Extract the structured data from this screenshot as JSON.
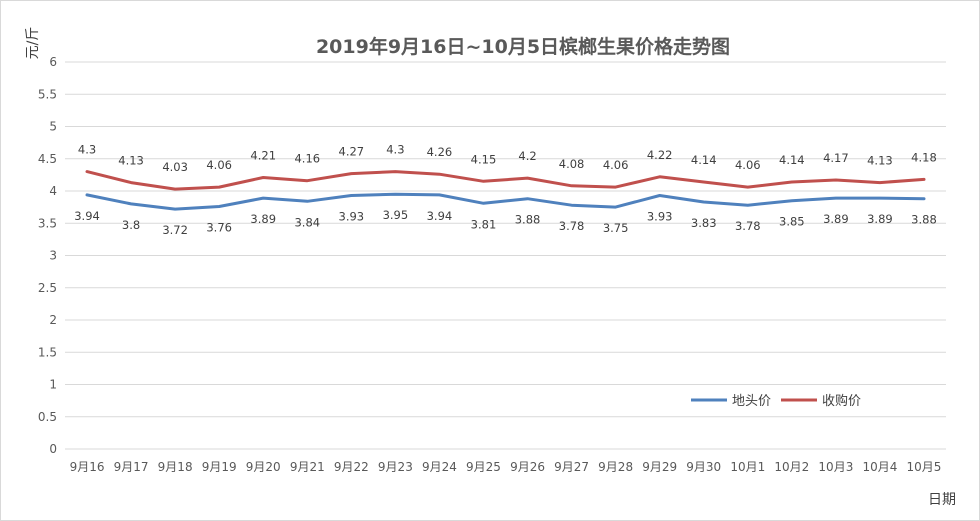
{
  "chart_data": {
    "type": "line",
    "title": "2019年9月16日~10月5日槟榔生果价格走势图",
    "ylabel": "元/斤",
    "xlabel": "日期",
    "ylim": [
      0,
      6
    ],
    "ytick_step": 0.5,
    "yticks": [
      "0",
      "0.5",
      "1",
      "1.5",
      "2",
      "2.5",
      "3",
      "3.5",
      "4",
      "4.5",
      "5",
      "5.5",
      "6"
    ],
    "grid": true,
    "legend_position": "bottom-right",
    "categories": [
      "9月16",
      "9月17",
      "9月18",
      "9月19",
      "9月20",
      "9月21",
      "9月22",
      "9月23",
      "9月24",
      "9月25",
      "9月26",
      "9月27",
      "9月28",
      "9月29",
      "9月30",
      "10月1",
      "10月2",
      "10月3",
      "10月4",
      "10月5"
    ],
    "series": [
      {
        "name": "地头价",
        "color": "#4f81bd",
        "label_position": "below",
        "values": [
          3.94,
          3.8,
          3.72,
          3.76,
          3.89,
          3.84,
          3.93,
          3.95,
          3.94,
          3.81,
          3.88,
          3.78,
          3.75,
          3.93,
          3.83,
          3.78,
          3.85,
          3.89,
          3.89,
          3.88
        ]
      },
      {
        "name": "收购价",
        "color": "#c0504d",
        "label_position": "above",
        "values": [
          4.3,
          4.13,
          4.03,
          4.06,
          4.21,
          4.16,
          4.27,
          4.3,
          4.26,
          4.15,
          4.2,
          4.08,
          4.06,
          4.22,
          4.14,
          4.06,
          4.14,
          4.17,
          4.13,
          4.18
        ]
      }
    ]
  }
}
